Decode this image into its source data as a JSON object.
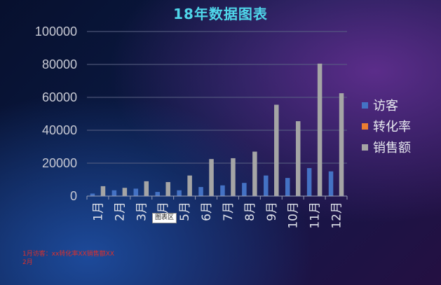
{
  "chart_data": {
    "type": "bar",
    "title": "18年数据图表",
    "categories": [
      "1月",
      "2月",
      "3月",
      "4月",
      "5月",
      "6月",
      "7月",
      "8月",
      "9月",
      "10月",
      "11月",
      "12月"
    ],
    "series": [
      {
        "name": "访客",
        "color": "#4472c4",
        "values": [
          1500,
          3500,
          4500,
          2500,
          3500,
          5500,
          6500,
          8000,
          12500,
          11000,
          17000,
          15000
        ]
      },
      {
        "name": "转化率",
        "color": "#ed7d31",
        "values": [
          0,
          0,
          0,
          0,
          0,
          0,
          0,
          0,
          0,
          0,
          0,
          0
        ]
      },
      {
        "name": "销售额",
        "color": "#a5a5a5",
        "values": [
          6000,
          5000,
          9000,
          8500,
          12500,
          22500,
          23000,
          27000,
          55500,
          45500,
          80500,
          62500
        ]
      }
    ],
    "yticks": [
      "0",
      "20000",
      "40000",
      "60000",
      "80000",
      "100000"
    ],
    "ylim": [
      0,
      100000
    ],
    "grid": true,
    "legend": "right"
  },
  "tooltip": "图表区",
  "note": {
    "line1": "1月访客：xx转化率XX销售额XX",
    "line2": "2月"
  }
}
